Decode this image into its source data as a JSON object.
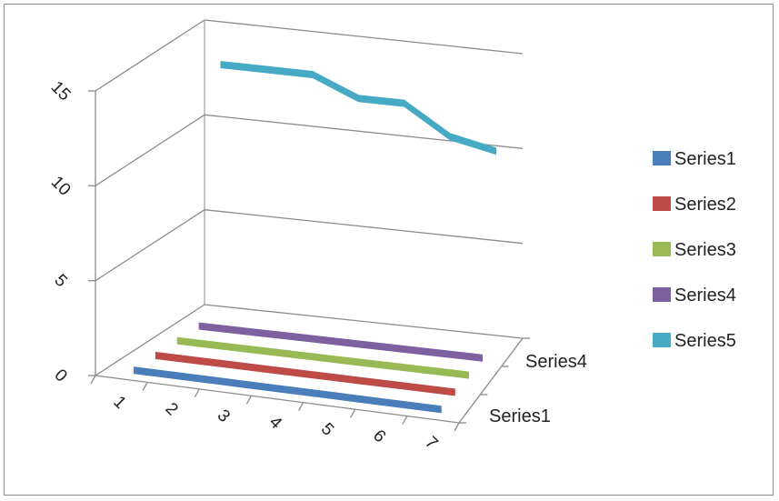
{
  "chart_data": {
    "type": "line",
    "subtype": "3d-line",
    "title": "",
    "xlabel": "",
    "ylabel": "",
    "categories": [
      "1",
      "2",
      "3",
      "4",
      "5",
      "6",
      "7"
    ],
    "ylim": [
      0,
      15
    ],
    "y_ticks": [
      "0",
      "5",
      "10",
      "15"
    ],
    "depth_axis_labels": [
      "Series1",
      "Series4"
    ],
    "grid": true,
    "legend_position": "right",
    "series": [
      {
        "name": "Series1",
        "color": "#4a7ebb",
        "values": [
          0,
          0,
          0,
          0,
          0,
          0,
          0
        ]
      },
      {
        "name": "Series2",
        "color": "#be4b48",
        "values": [
          0,
          0,
          0,
          0,
          0,
          0,
          0
        ]
      },
      {
        "name": "Series3",
        "color": "#98b954",
        "values": [
          0,
          0,
          0,
          0,
          0,
          0,
          0
        ]
      },
      {
        "name": "Series4",
        "color": "#7d60a0",
        "values": [
          0,
          0,
          0,
          0,
          0,
          0,
          0
        ]
      },
      {
        "name": "Series5",
        "color": "#46aac5",
        "values": [
          13,
          13,
          13,
          12,
          12,
          10.5,
          10
        ]
      }
    ]
  }
}
